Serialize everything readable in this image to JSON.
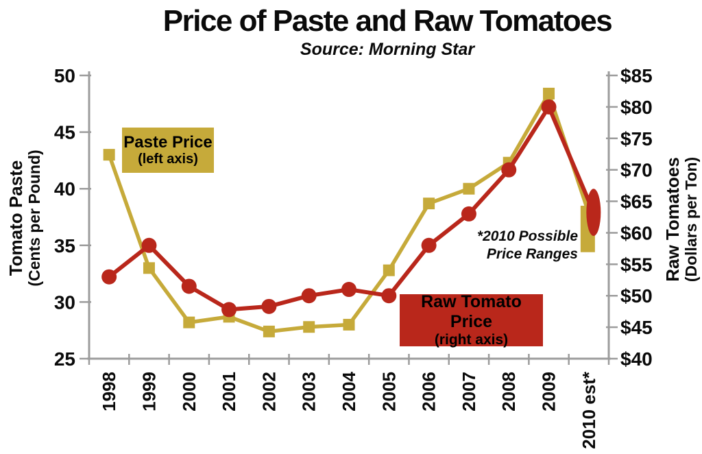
{
  "title": "Price of Paste and Raw Tomatoes",
  "subtitle": "Source: Morning Star",
  "colors": {
    "paste_gold": "#C6AA3A",
    "raw_red": "#B9271B",
    "axis_gray": "#9C9C9C",
    "text_black": "#0A0A0A"
  },
  "left_axis": {
    "title": "Tomato Paste",
    "subtitle": "(Cents per Pound)",
    "ticks": [
      {
        "value": 50,
        "label": "50"
      },
      {
        "value": 45,
        "label": "45"
      },
      {
        "value": 40,
        "label": "40"
      },
      {
        "value": 35,
        "label": "35"
      },
      {
        "value": 30,
        "label": "30"
      },
      {
        "value": 25,
        "label": "25"
      }
    ]
  },
  "right_axis": {
    "title": "Raw Tomatoes",
    "subtitle": "(Dollars per Ton)",
    "ticks": [
      {
        "value": 85,
        "label": "$85"
      },
      {
        "value": 80,
        "label": "$80"
      },
      {
        "value": 75,
        "label": "$75"
      },
      {
        "value": 70,
        "label": "$70"
      },
      {
        "value": 65,
        "label": "$65"
      },
      {
        "value": 60,
        "label": "$60"
      },
      {
        "value": 55,
        "label": "$55"
      },
      {
        "value": 50,
        "label": "$50"
      },
      {
        "value": 45,
        "label": "$45"
      },
      {
        "value": 40,
        "label": "$40"
      }
    ]
  },
  "series_labels": {
    "paste": {
      "line1": "Paste Price",
      "line2": "(left axis)"
    },
    "raw": {
      "line1": "Raw Tomato Price",
      "line2": "(right axis)"
    }
  },
  "annotation": {
    "line1": "*2010 Possible",
    "line2": "Price Ranges"
  },
  "chart_data": {
    "type": "line",
    "title": "Price of Paste and Raw Tomatoes",
    "subtitle": "Source: Morning Star",
    "categories": [
      "1998",
      "1999",
      "2000",
      "2001",
      "2002",
      "2003",
      "2004",
      "2005",
      "2006",
      "2007",
      "2008",
      "2009",
      "2010 est*"
    ],
    "left_ylim": [
      25,
      50
    ],
    "right_ylim": [
      40,
      85
    ],
    "grid": false,
    "legend_position": "inline-boxes",
    "series": [
      {
        "name": "Paste Price (left axis)",
        "axis": "left",
        "units": "cents per pound",
        "color": "#C6AA3A",
        "marker": "square",
        "values": [
          43.0,
          33.0,
          28.2,
          28.7,
          27.4,
          27.8,
          28.0,
          32.8,
          38.7,
          40.0,
          42.3,
          48.4
        ],
        "estimate_2010_range": [
          34.4,
          38.5
        ]
      },
      {
        "name": "Raw Tomato Price (right axis)",
        "axis": "right",
        "units": "dollars per ton",
        "color": "#B9271B",
        "marker": "circle",
        "values": [
          53.0,
          58.0,
          51.5,
          47.8,
          48.3,
          50.0,
          51.0,
          50.0,
          58.0,
          63.0,
          70.0,
          80.0
        ],
        "estimate_2010_range": [
          59.5,
          67.0
        ]
      }
    ]
  }
}
